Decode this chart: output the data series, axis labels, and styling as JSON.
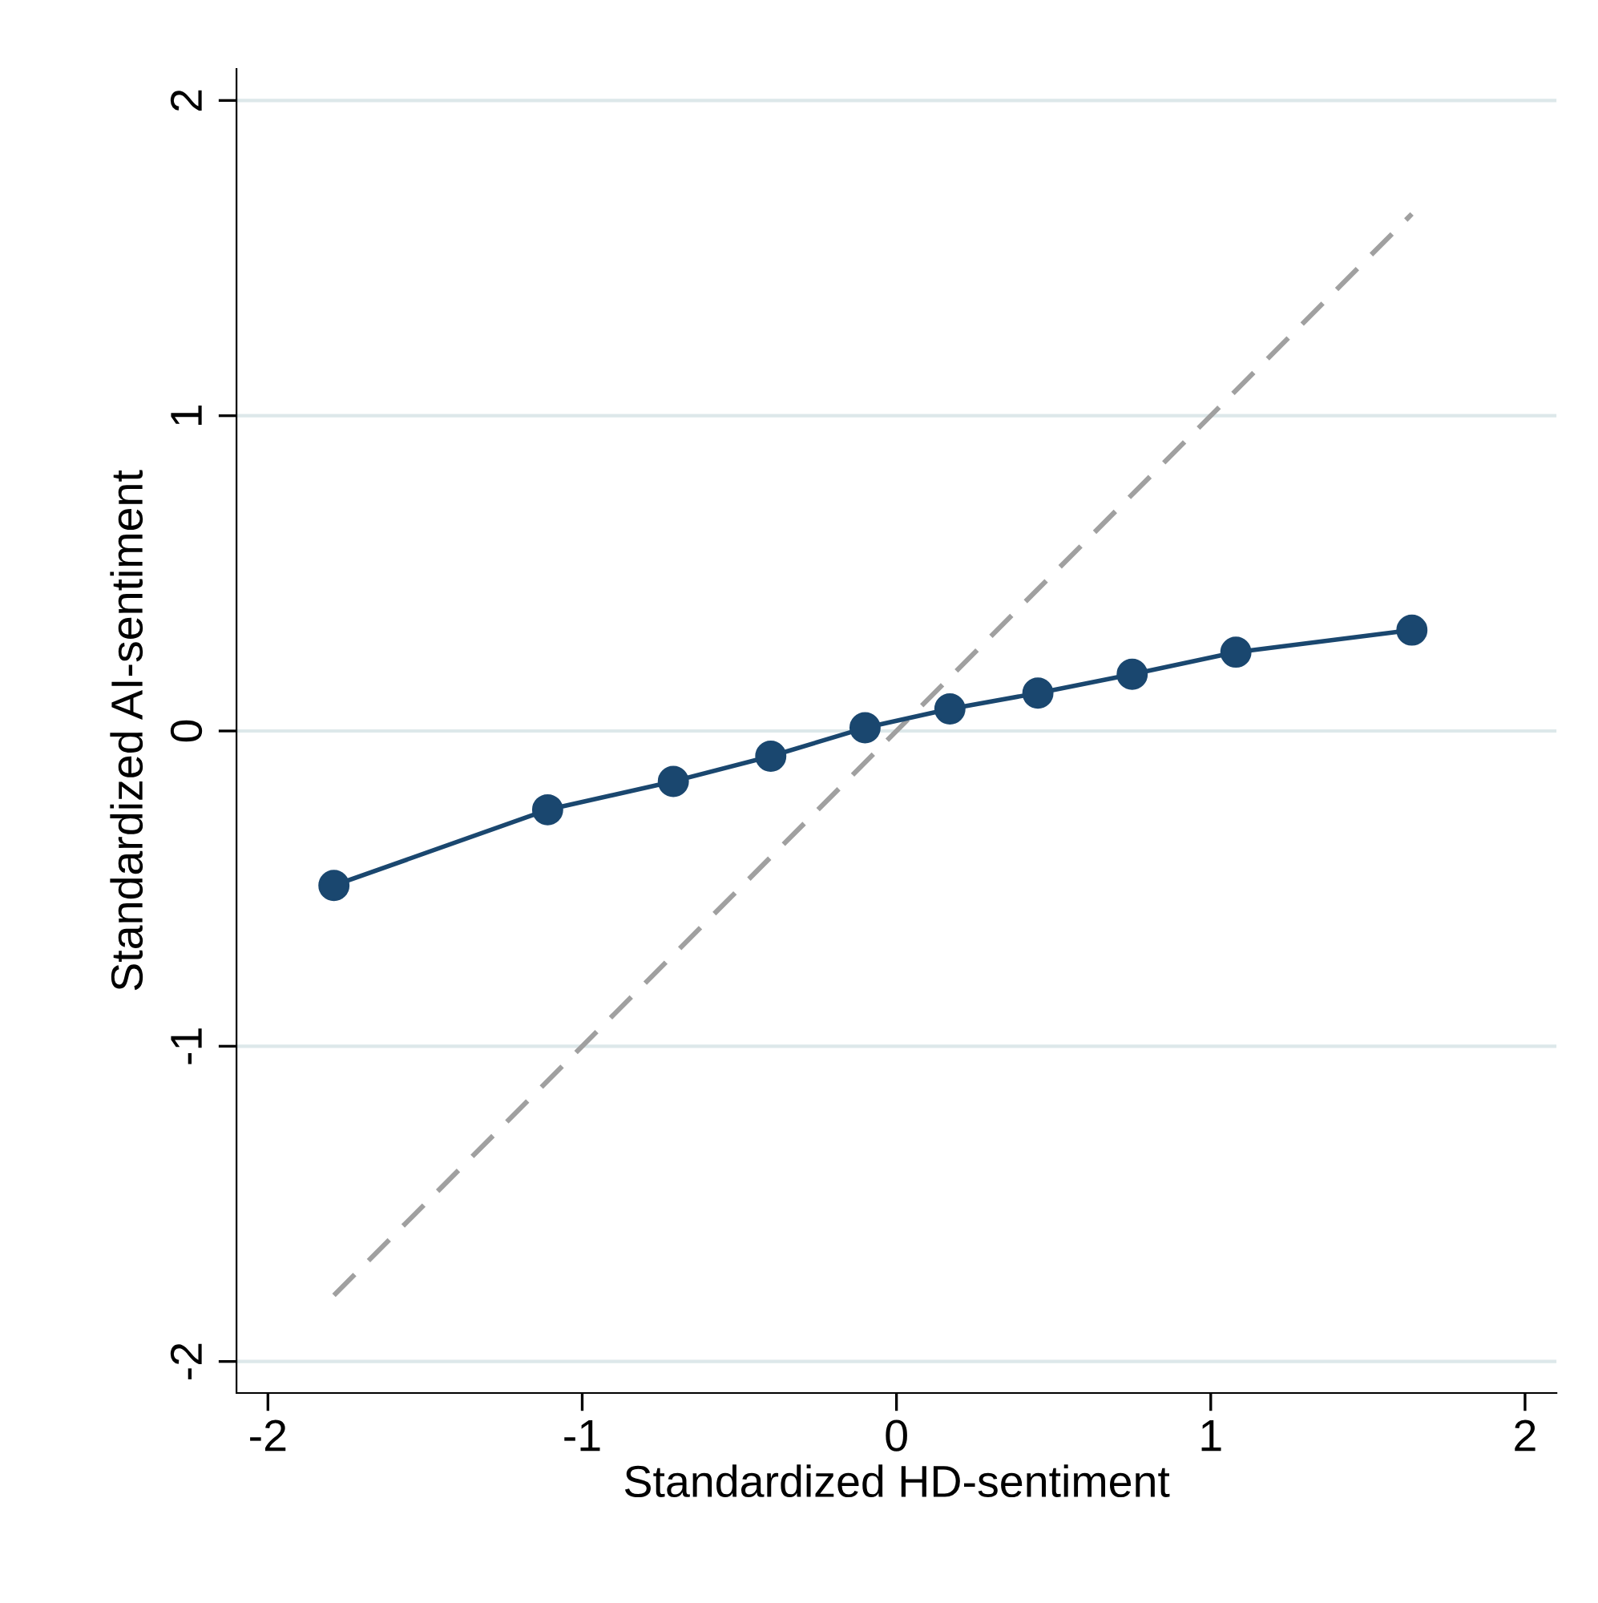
{
  "chart_data": {
    "type": "line",
    "xlabel": "Standardized HD-sentiment",
    "ylabel": "Standardized AI-sentiment",
    "xlim": [
      -2.1,
      2.1
    ],
    "ylim": [
      -2.1,
      2.1
    ],
    "xticks": [
      -2,
      -1,
      0,
      1,
      2
    ],
    "yticks": [
      -2,
      -1,
      0,
      1,
      2
    ],
    "grid": "y",
    "series": [
      {
        "color": "#1a476f",
        "marker": "circle",
        "line_style": "solid",
        "x": [
          -1.79,
          -1.11,
          -0.71,
          -0.4,
          -0.1,
          0.17,
          0.45,
          0.75,
          1.08,
          1.64
        ],
        "values": [
          -0.49,
          -0.25,
          -0.16,
          -0.08,
          0.01,
          0.07,
          0.12,
          0.18,
          0.25,
          0.32
        ]
      },
      {
        "color": "#a0a0a0",
        "marker": "none",
        "line_style": "dashed",
        "x": [
          -1.79,
          1.64
        ],
        "values": [
          -1.79,
          1.64
        ]
      }
    ]
  }
}
